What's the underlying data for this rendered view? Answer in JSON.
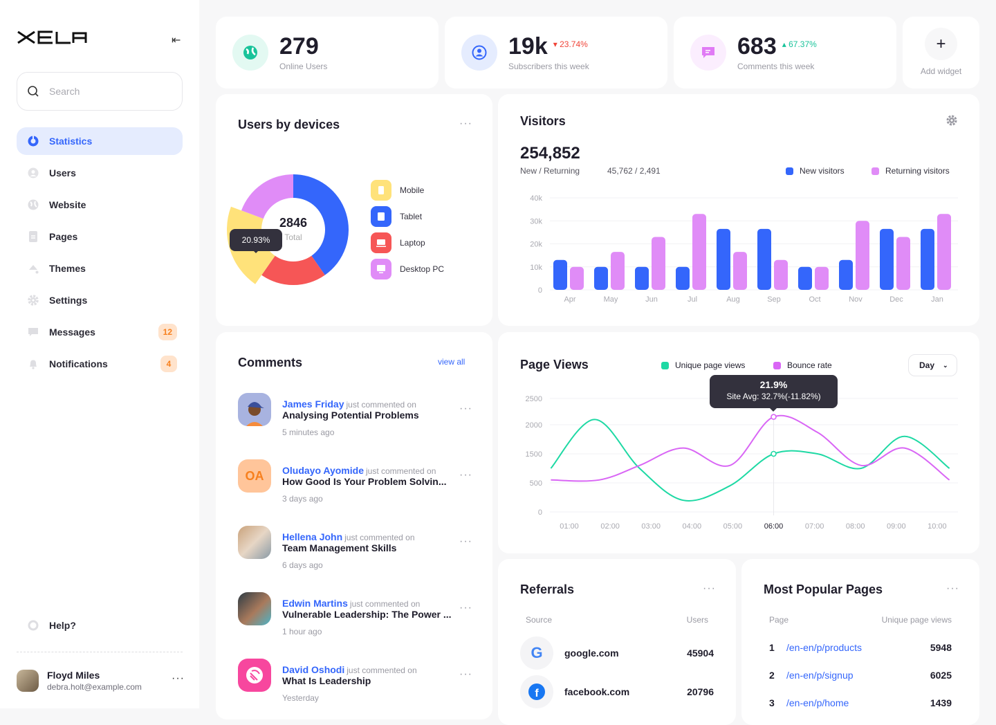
{
  "brand": {
    "logo": "XELA"
  },
  "sidebar": {
    "search_placeholder": "Search",
    "items": [
      {
        "label": "Statistics",
        "icon": "pie-chart-icon",
        "active": true
      },
      {
        "label": "Users",
        "icon": "user-icon"
      },
      {
        "label": "Website",
        "icon": "globe-icon"
      },
      {
        "label": "Pages",
        "icon": "document-icon"
      },
      {
        "label": "Themes",
        "icon": "paint-bucket-icon"
      },
      {
        "label": "Settings",
        "icon": "gear-icon"
      },
      {
        "label": "Messages",
        "icon": "message-icon",
        "badge": "12"
      },
      {
        "label": "Notifications",
        "icon": "bell-icon",
        "badge": "4"
      }
    ],
    "help": "Help?",
    "user": {
      "name": "Floyd Miles",
      "email": "debra.holt@example.com"
    }
  },
  "stats": [
    {
      "value": "279",
      "label": "Online Users",
      "icon": "globe-icon",
      "color": "#19c39a"
    },
    {
      "value": "19k",
      "label": "Subscribers this week",
      "delta": "23.74%",
      "trend": "down",
      "icon": "user-icon",
      "color": "#3466fb"
    },
    {
      "value": "683",
      "label": "Comments this week",
      "delta": "67.37%",
      "trend": "up",
      "icon": "comment-icon",
      "color": "#e07bf5"
    }
  ],
  "add_widget": {
    "label": "Add widget"
  },
  "devices": {
    "title": "Users by devices",
    "total": "2846",
    "total_label": "Total",
    "tooltip": "20.93%",
    "chart_data": {
      "type": "pie",
      "total": 2846,
      "slices": [
        {
          "name": "Tablet",
          "value": 40.3,
          "color": "#3466fb"
        },
        {
          "name": "Laptop",
          "value": 19.4,
          "color": "#f65656"
        },
        {
          "name": "Mobile",
          "value": 20.93,
          "color": "#ffe27a",
          "highlighted": true
        },
        {
          "name": "Desktop PC",
          "value": 19.37,
          "color": "#e08cf7"
        }
      ]
    },
    "legend": [
      {
        "label": "Mobile",
        "color": "#ffe27a"
      },
      {
        "label": "Tablet",
        "color": "#3466fb"
      },
      {
        "label": "Laptop",
        "color": "#f65656"
      },
      {
        "label": "Desktop PC",
        "color": "#e08cf7"
      }
    ]
  },
  "visitors": {
    "title": "Visitors",
    "total": "254,852",
    "sub_label": "New / Returning",
    "sub_value": "45,762 / 2,491",
    "chart_data": {
      "type": "bar",
      "categories": [
        "Apr",
        "May",
        "Jun",
        "Jul",
        "Aug",
        "Sep",
        "Oct",
        "Nov",
        "Dec",
        "Jan"
      ],
      "series": [
        {
          "name": "New visitors",
          "color": "#3466fb",
          "values": [
            13,
            10,
            10,
            10,
            26.5,
            26.5,
            10,
            13,
            26.5,
            26.5
          ]
        },
        {
          "name": "Returning visitors",
          "color": "#e08cf7",
          "values": [
            10,
            16.5,
            23,
            33,
            16.5,
            13,
            10,
            30,
            23,
            33
          ]
        }
      ],
      "yticks": [
        "0",
        "10k",
        "20k",
        "30k",
        "40k"
      ],
      "ylim": [
        0,
        40
      ],
      "grid": true,
      "legend": "top-right"
    }
  },
  "pageviews": {
    "title": "Page Views",
    "range": "Day",
    "tooltip": {
      "value": "21.9%",
      "detail": "Site Avg: 32.7%(-11.82%)"
    },
    "chart_data": {
      "type": "line",
      "xticks": [
        "01:00",
        "02:00",
        "03:00",
        "04:00",
        "05:00",
        "06:00",
        "07:00",
        "08:00",
        "09:00",
        "10:00"
      ],
      "highlight_x": "06:00",
      "yticks": [
        0,
        500,
        1500,
        2000,
        2500
      ],
      "series": [
        {
          "name": "Unique page views",
          "color": "#1ed9a4",
          "points": [
            [
              0.55,
              1000
            ],
            [
              1.62,
              2100
            ],
            [
              2.72,
              1000
            ],
            [
              3.79,
              200
            ],
            [
              4.93,
              450
            ],
            [
              6,
              1500
            ],
            [
              7.07,
              1500
            ],
            [
              8.14,
              1000
            ],
            [
              9.2,
              1800
            ],
            [
              10.3,
              1000
            ]
          ]
        },
        {
          "name": "Bounce rate",
          "color": "#d966f5",
          "points": [
            [
              0.55,
              600
            ],
            [
              1.73,
              600
            ],
            [
              2.72,
              1100
            ],
            [
              3.79,
              1600
            ],
            [
              4.93,
              1100
            ],
            [
              6,
              2150
            ],
            [
              7.07,
              1870
            ],
            [
              8.14,
              1100
            ],
            [
              9.2,
              1600
            ],
            [
              10.3,
              600
            ]
          ]
        }
      ],
      "grid": true,
      "legend": "top"
    }
  },
  "comments": {
    "title": "Comments",
    "view_all": "view all",
    "verb": "just commented on",
    "items": [
      {
        "name": "James Friday",
        "post": "Analysing Potential Problems",
        "time": "5 minutes ago"
      },
      {
        "name": "Oludayo Ayomide",
        "initials": "OA",
        "post": "How Good Is Your Problem Solvin...",
        "time": "3 days ago"
      },
      {
        "name": "Hellena John",
        "post": "Team Management Skills",
        "time": "6 days ago"
      },
      {
        "name": "Edwin Martins",
        "post": "Vulnerable Leadership: The Power ...",
        "time": "1 hour ago"
      },
      {
        "name": "David Oshodi",
        "post": "What Is Leadership",
        "time": "Yesterday"
      }
    ]
  },
  "referrals": {
    "title": "Referrals",
    "col_source": "Source",
    "col_users": "Users",
    "rows": [
      {
        "source": "google.com",
        "users": "45904",
        "icon": "google-icon"
      },
      {
        "source": "facebook.com",
        "users": "20796",
        "icon": "facebook-icon"
      }
    ]
  },
  "popular": {
    "title": "Most Popular Pages",
    "col_page": "Page",
    "col_views": "Unique page views",
    "rows": [
      {
        "rank": "1",
        "page": "/en-en/p/products",
        "views": "5948"
      },
      {
        "rank": "2",
        "page": "/en-en/p/signup",
        "views": "6025"
      },
      {
        "rank": "3",
        "page": "/en-en/p/home",
        "views": "1439"
      }
    ]
  }
}
